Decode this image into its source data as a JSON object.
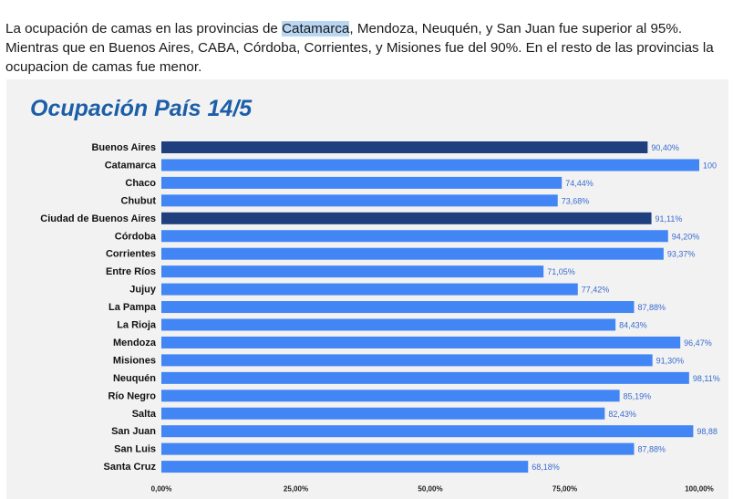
{
  "paragraph": {
    "before": "La ocupación de camas en las provincias de ",
    "highlight": "Catamarca",
    "after": ", Mendoza, Neuquén, y San Juan fue superior al 95%. Mientras que en Buenos Aires, CABA, Córdoba, Corrientes, y Misiones fue del 90%. En el resto de las provincias la ocupacion de camas fue menor."
  },
  "colors": {
    "bar_light": "#4285f4",
    "bar_dark": "#1f3f7e",
    "title": "#1c5fa8",
    "highlight": "#b9d6f2"
  },
  "chart_data": {
    "type": "bar",
    "orientation": "horizontal",
    "title": "Ocupación País 14/5",
    "xlabel": "",
    "ylabel": "",
    "xlim": [
      0,
      100
    ],
    "x_ticks": [
      "0,00%",
      "25,00%",
      "50,00%",
      "75,00%",
      "100,00%"
    ],
    "categories": [
      "Buenos Aires",
      "Catamarca",
      "Chaco",
      "Chubut",
      "Ciudad de Buenos Aires",
      "Córdoba",
      "Corrientes",
      "Entre Ríos",
      "Jujuy",
      "La Pampa",
      "La Rioja",
      "Mendoza",
      "Misiones",
      "Neuquén",
      "Río Negro",
      "Salta",
      "San Juan",
      "San Luis",
      "Santa Cruz"
    ],
    "values": [
      90.4,
      100,
      74.44,
      73.68,
      91.11,
      94.2,
      93.37,
      71.05,
      77.42,
      87.88,
      84.43,
      96.47,
      91.3,
      98.11,
      85.19,
      82.43,
      98.88,
      87.88,
      68.18
    ],
    "labels": [
      "90,40%",
      "100",
      "74,44%",
      "73,68%",
      "91,11%",
      "94,20%",
      "93,37%",
      "71,05%",
      "77,42%",
      "87,88%",
      "84,43%",
      "96,47%",
      "91,30%",
      "98,11%",
      "85,19%",
      "82,43%",
      "98,88",
      "87,88%",
      "68,18%"
    ],
    "highlighted": [
      "Buenos Aires",
      "Ciudad de Buenos Aires"
    ],
    "grid": false,
    "legend": "none"
  }
}
